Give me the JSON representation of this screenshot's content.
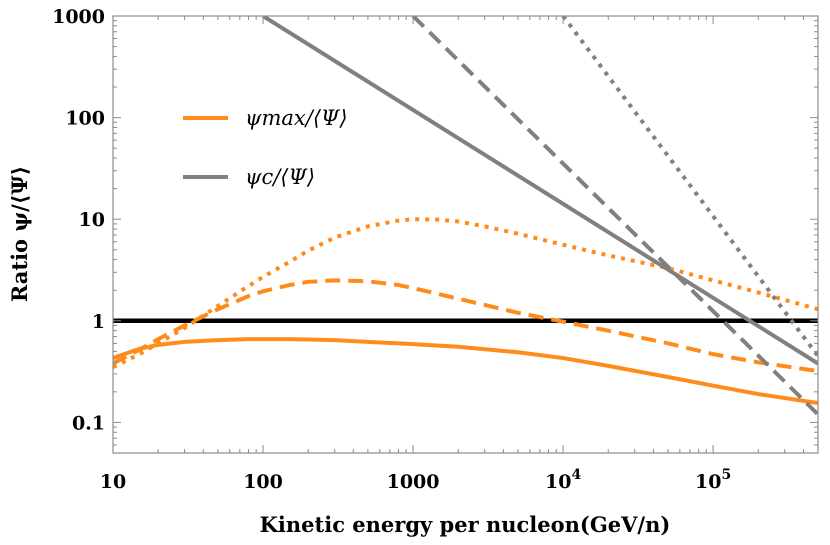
{
  "chart_data": {
    "type": "line",
    "xlabel": "Kinetic energy per nucleon(GeV/n)",
    "ylabel": "Ratio ψ/⟨Ψ⟩",
    "x_scale": "log",
    "y_scale": "log",
    "xlim": [
      10,
      500000
    ],
    "ylim": [
      0.05,
      1000
    ],
    "x_ticks": [
      {
        "value": 10,
        "label": "10"
      },
      {
        "value": 100,
        "label": "100"
      },
      {
        "value": 1000,
        "label": "1000"
      },
      {
        "value": 10000,
        "label": "10",
        "exp": "4"
      },
      {
        "value": 100000,
        "label": "10",
        "exp": "5"
      }
    ],
    "y_ticks": [
      {
        "value": 0.1,
        "label": "0.1"
      },
      {
        "value": 1,
        "label": "1"
      },
      {
        "value": 10,
        "label": "10"
      },
      {
        "value": 100,
        "label": "100"
      },
      {
        "value": 1000,
        "label": "1000"
      }
    ],
    "legend": {
      "placement": "upper-left",
      "entries": [
        {
          "label": "ψmax/⟨Ψ⟩",
          "color": "#ff8c1a"
        },
        {
          "label": "ψc/⟨Ψ⟩",
          "color": "#808080"
        }
      ]
    },
    "series": [
      {
        "color": "#000000",
        "style": "solid",
        "width": 4.5,
        "x": [
          10,
          500000
        ],
        "y": [
          1,
          1
        ]
      },
      {
        "color": "#ff8c1a",
        "style": "solid",
        "width": 4,
        "x": [
          10,
          15,
          20,
          30,
          50,
          80,
          100,
          150,
          200,
          300,
          500,
          800,
          1000,
          2000,
          5000,
          10000,
          20000,
          50000,
          100000,
          200000,
          500000
        ],
        "y": [
          0.43,
          0.53,
          0.58,
          0.62,
          0.645,
          0.66,
          0.66,
          0.66,
          0.655,
          0.645,
          0.62,
          0.6,
          0.59,
          0.555,
          0.49,
          0.43,
          0.36,
          0.28,
          0.23,
          0.19,
          0.155
        ]
      },
      {
        "color": "#ff8c1a",
        "style": "dashed",
        "width": 4,
        "x": [
          10,
          15,
          20,
          30,
          50,
          80,
          100,
          150,
          200,
          300,
          500,
          800,
          1000,
          2000,
          5000,
          10000,
          20000,
          50000,
          100000,
          200000,
          500000
        ],
        "y": [
          0.38,
          0.52,
          0.66,
          0.9,
          1.3,
          1.75,
          1.95,
          2.25,
          2.42,
          2.5,
          2.45,
          2.25,
          2.1,
          1.65,
          1.2,
          0.98,
          0.8,
          0.6,
          0.47,
          0.39,
          0.32
        ]
      },
      {
        "color": "#ff8c1a",
        "style": "dotted",
        "width": 4,
        "x": [
          10,
          15,
          20,
          30,
          50,
          80,
          100,
          150,
          200,
          300,
          500,
          800,
          1000,
          1500,
          2000,
          3000,
          5000,
          10000,
          20000,
          50000,
          100000,
          200000,
          500000
        ],
        "y": [
          0.35,
          0.47,
          0.6,
          0.85,
          1.4,
          2.2,
          2.7,
          3.8,
          4.9,
          6.6,
          8.5,
          9.7,
          10,
          9.9,
          9.5,
          8.5,
          7.2,
          5.6,
          4.4,
          3.3,
          2.5,
          1.9,
          1.3
        ]
      },
      {
        "color": "#808080",
        "style": "solid",
        "width": 4,
        "x": [
          100,
          500000
        ],
        "y": [
          1000,
          0.38
        ]
      },
      {
        "color": "#808080",
        "style": "dashed",
        "width": 4,
        "x": [
          1000,
          500000
        ],
        "y": [
          1000,
          0.12
        ]
      },
      {
        "color": "#808080",
        "style": "dotted",
        "width": 4,
        "x": [
          10000,
          500000
        ],
        "y": [
          1000,
          0.45
        ]
      }
    ]
  }
}
